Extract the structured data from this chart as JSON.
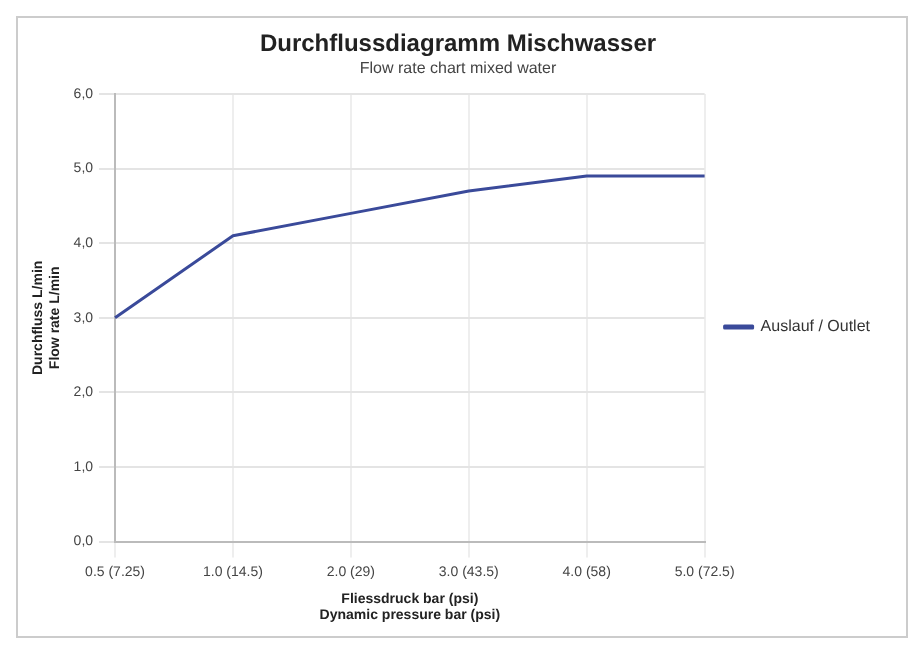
{
  "chart_data": {
    "type": "line",
    "title": "Durchflussdiagramm Mischwasser",
    "subtitle": "Flow rate chart mixed water",
    "xlabel": "Fliessdruck bar (psi)\nDynamic pressure bar (psi)",
    "ylabel": "Durchfluss L/min\nFlow rate L/min",
    "categories": [
      "0.5 (7.25)",
      "1.0 (14.5)",
      "2.0 (29)",
      "3.0 (43.5)",
      "4.0 (58)",
      "5.0 (72.5)"
    ],
    "series": [
      {
        "name": "Auslauf / Outlet",
        "color": "#3a4a9a",
        "values": [
          3.0,
          4.1,
          4.4,
          4.7,
          4.9,
          4.9
        ]
      }
    ],
    "ylim": [
      0,
      6
    ],
    "yticks": [
      {
        "value": 0,
        "label": "0,0"
      },
      {
        "value": 1,
        "label": "1,0"
      },
      {
        "value": 2,
        "label": "2,0"
      },
      {
        "value": 3,
        "label": "3,0"
      },
      {
        "value": 4,
        "label": "4,0"
      },
      {
        "value": 5,
        "label": "5,0"
      },
      {
        "value": 6,
        "label": "6,0"
      }
    ],
    "grid": true,
    "legend": "right",
    "marker": "none",
    "line_style": "solid"
  }
}
